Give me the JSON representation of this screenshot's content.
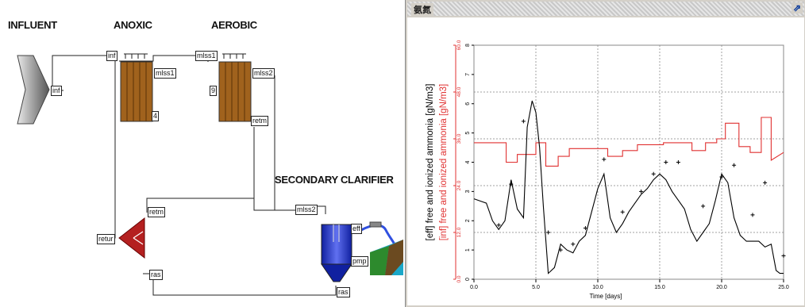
{
  "flowsheet": {
    "labels": {
      "influent": "INFLUENT",
      "anoxic": "ANOXIC",
      "aerobic": "AEROBIC",
      "clarifier": "SECONDARY CLARIFIER"
    },
    "ports": {
      "influent_out": "inf",
      "anoxic_in": "inf",
      "anoxic_out": "mlss1",
      "anoxic_num": "4",
      "aerobic_in": "mlss1",
      "aerobic_out": "mlss2",
      "aerobic_num": "9",
      "aerobic_return": "retm",
      "clarifier_in": "mlss2",
      "clarifier_eff": "eff",
      "clarifier_pmp": "pmp",
      "clarifier_ras": "ras",
      "splitter_retm": "retm",
      "splitter_retur": "retur",
      "splitter_ras": "ras"
    },
    "colors": {
      "reactor": "#a0621d",
      "splitter": "#b42020",
      "clarifier": "#2838c8",
      "pipe": "#3050e0"
    }
  },
  "panel": {
    "title": "氨氮",
    "popout_icon": "popout-icon",
    "colors": {
      "eff": "#000000",
      "inf": "#e03030",
      "grid": "#a0a0a0"
    }
  },
  "chart_data": {
    "type": "line",
    "xlabel": "Time [days]",
    "ylabel_left": "[eff] free and ionized ammonia [gN/m3]",
    "ylabel_right": "[inf] free and ionized ammonia [gN/m3]",
    "xlim": [
      0,
      25
    ],
    "ylim_eff": [
      0,
      8
    ],
    "ylim_inf": [
      0,
      60
    ],
    "xticks": [
      "0.0",
      "5.0",
      "10.0",
      "15.0",
      "20.0",
      "25.0"
    ],
    "yticks_eff": [
      "0",
      "1",
      "2",
      "3",
      "4",
      "5",
      "6",
      "7",
      "8"
    ],
    "yticks_inf": [
      "0.0",
      "12.0",
      "24.0",
      "36.0",
      "48.0",
      "60.0"
    ],
    "grid": true,
    "series": [
      {
        "key": "inf",
        "style": "step",
        "x": [
          0,
          2.6,
          2.6,
          3.5,
          3.5,
          5.0,
          5.0,
          5.8,
          5.8,
          6.8,
          6.8,
          7.7,
          7.7,
          10.8,
          10.8,
          12.0,
          12.0,
          13.2,
          13.2,
          14.2,
          14.2,
          15.3,
          15.3,
          17.6,
          17.6,
          18.7,
          18.7,
          19.6,
          19.6,
          20.3,
          20.3,
          21.4,
          21.4,
          22.3,
          22.3,
          23.2,
          23.2,
          24.0,
          24.0,
          25.0
        ],
        "y": [
          35.0,
          35.0,
          30.0,
          30.0,
          32.0,
          32.0,
          35.0,
          35.0,
          29.0,
          29.0,
          31.5,
          31.5,
          33.5,
          33.5,
          31.5,
          31.5,
          33.0,
          33.0,
          34.5,
          34.5,
          34.5,
          34.5,
          35.0,
          35.0,
          33.0,
          33.0,
          35.0,
          35.0,
          36.0,
          36.0,
          40.0,
          40.0,
          34.0,
          34.0,
          32.5,
          32.5,
          41.5,
          41.5,
          30.5,
          32.5
        ]
      },
      {
        "key": "eff",
        "style": "line",
        "x": [
          0,
          1.0,
          1.5,
          2.0,
          2.5,
          3.0,
          3.5,
          4.0,
          4.3,
          4.7,
          5.0,
          5.3,
          5.6,
          6.0,
          6.5,
          7.0,
          7.5,
          8.0,
          8.5,
          9.0,
          9.5,
          10.0,
          10.5,
          11.0,
          11.5,
          12.0,
          12.5,
          13.0,
          13.5,
          14.0,
          14.5,
          15.0,
          15.5,
          16.0,
          16.5,
          17.0,
          17.5,
          18.0,
          18.5,
          19.0,
          19.5,
          20.0,
          20.5,
          21.0,
          21.5,
          22.0,
          22.5,
          23.0,
          23.5,
          24.0,
          24.4,
          24.7,
          25.0
        ],
        "y": [
          2.75,
          2.6,
          2.0,
          1.7,
          2.0,
          3.4,
          2.4,
          2.1,
          5.2,
          6.1,
          5.7,
          4.5,
          2.5,
          0.2,
          0.4,
          1.2,
          1.0,
          0.9,
          1.3,
          1.5,
          2.3,
          3.1,
          3.6,
          2.1,
          1.6,
          1.9,
          2.3,
          2.6,
          2.9,
          3.1,
          3.4,
          3.6,
          3.4,
          3.0,
          2.7,
          2.4,
          1.7,
          1.3,
          1.6,
          1.9,
          2.7,
          3.6,
          3.3,
          2.1,
          1.5,
          1.3,
          1.3,
          1.3,
          1.1,
          1.2,
          0.3,
          0.2,
          0.2
        ]
      },
      {
        "key": "eff_meas",
        "style": "markers",
        "x": [
          2.0,
          3.0,
          4.0,
          6.0,
          7.0,
          8.0,
          9.0,
          10.5,
          12.0,
          13.5,
          14.5,
          15.5,
          16.5,
          18.5,
          20.0,
          21.0,
          22.5,
          23.5,
          25.0
        ],
        "y": [
          1.85,
          3.25,
          5.4,
          1.6,
          1.0,
          1.2,
          1.75,
          4.1,
          2.3,
          3.0,
          3.6,
          4.0,
          4.0,
          2.5,
          3.5,
          3.9,
          2.2,
          3.3,
          0.8
        ]
      }
    ]
  }
}
